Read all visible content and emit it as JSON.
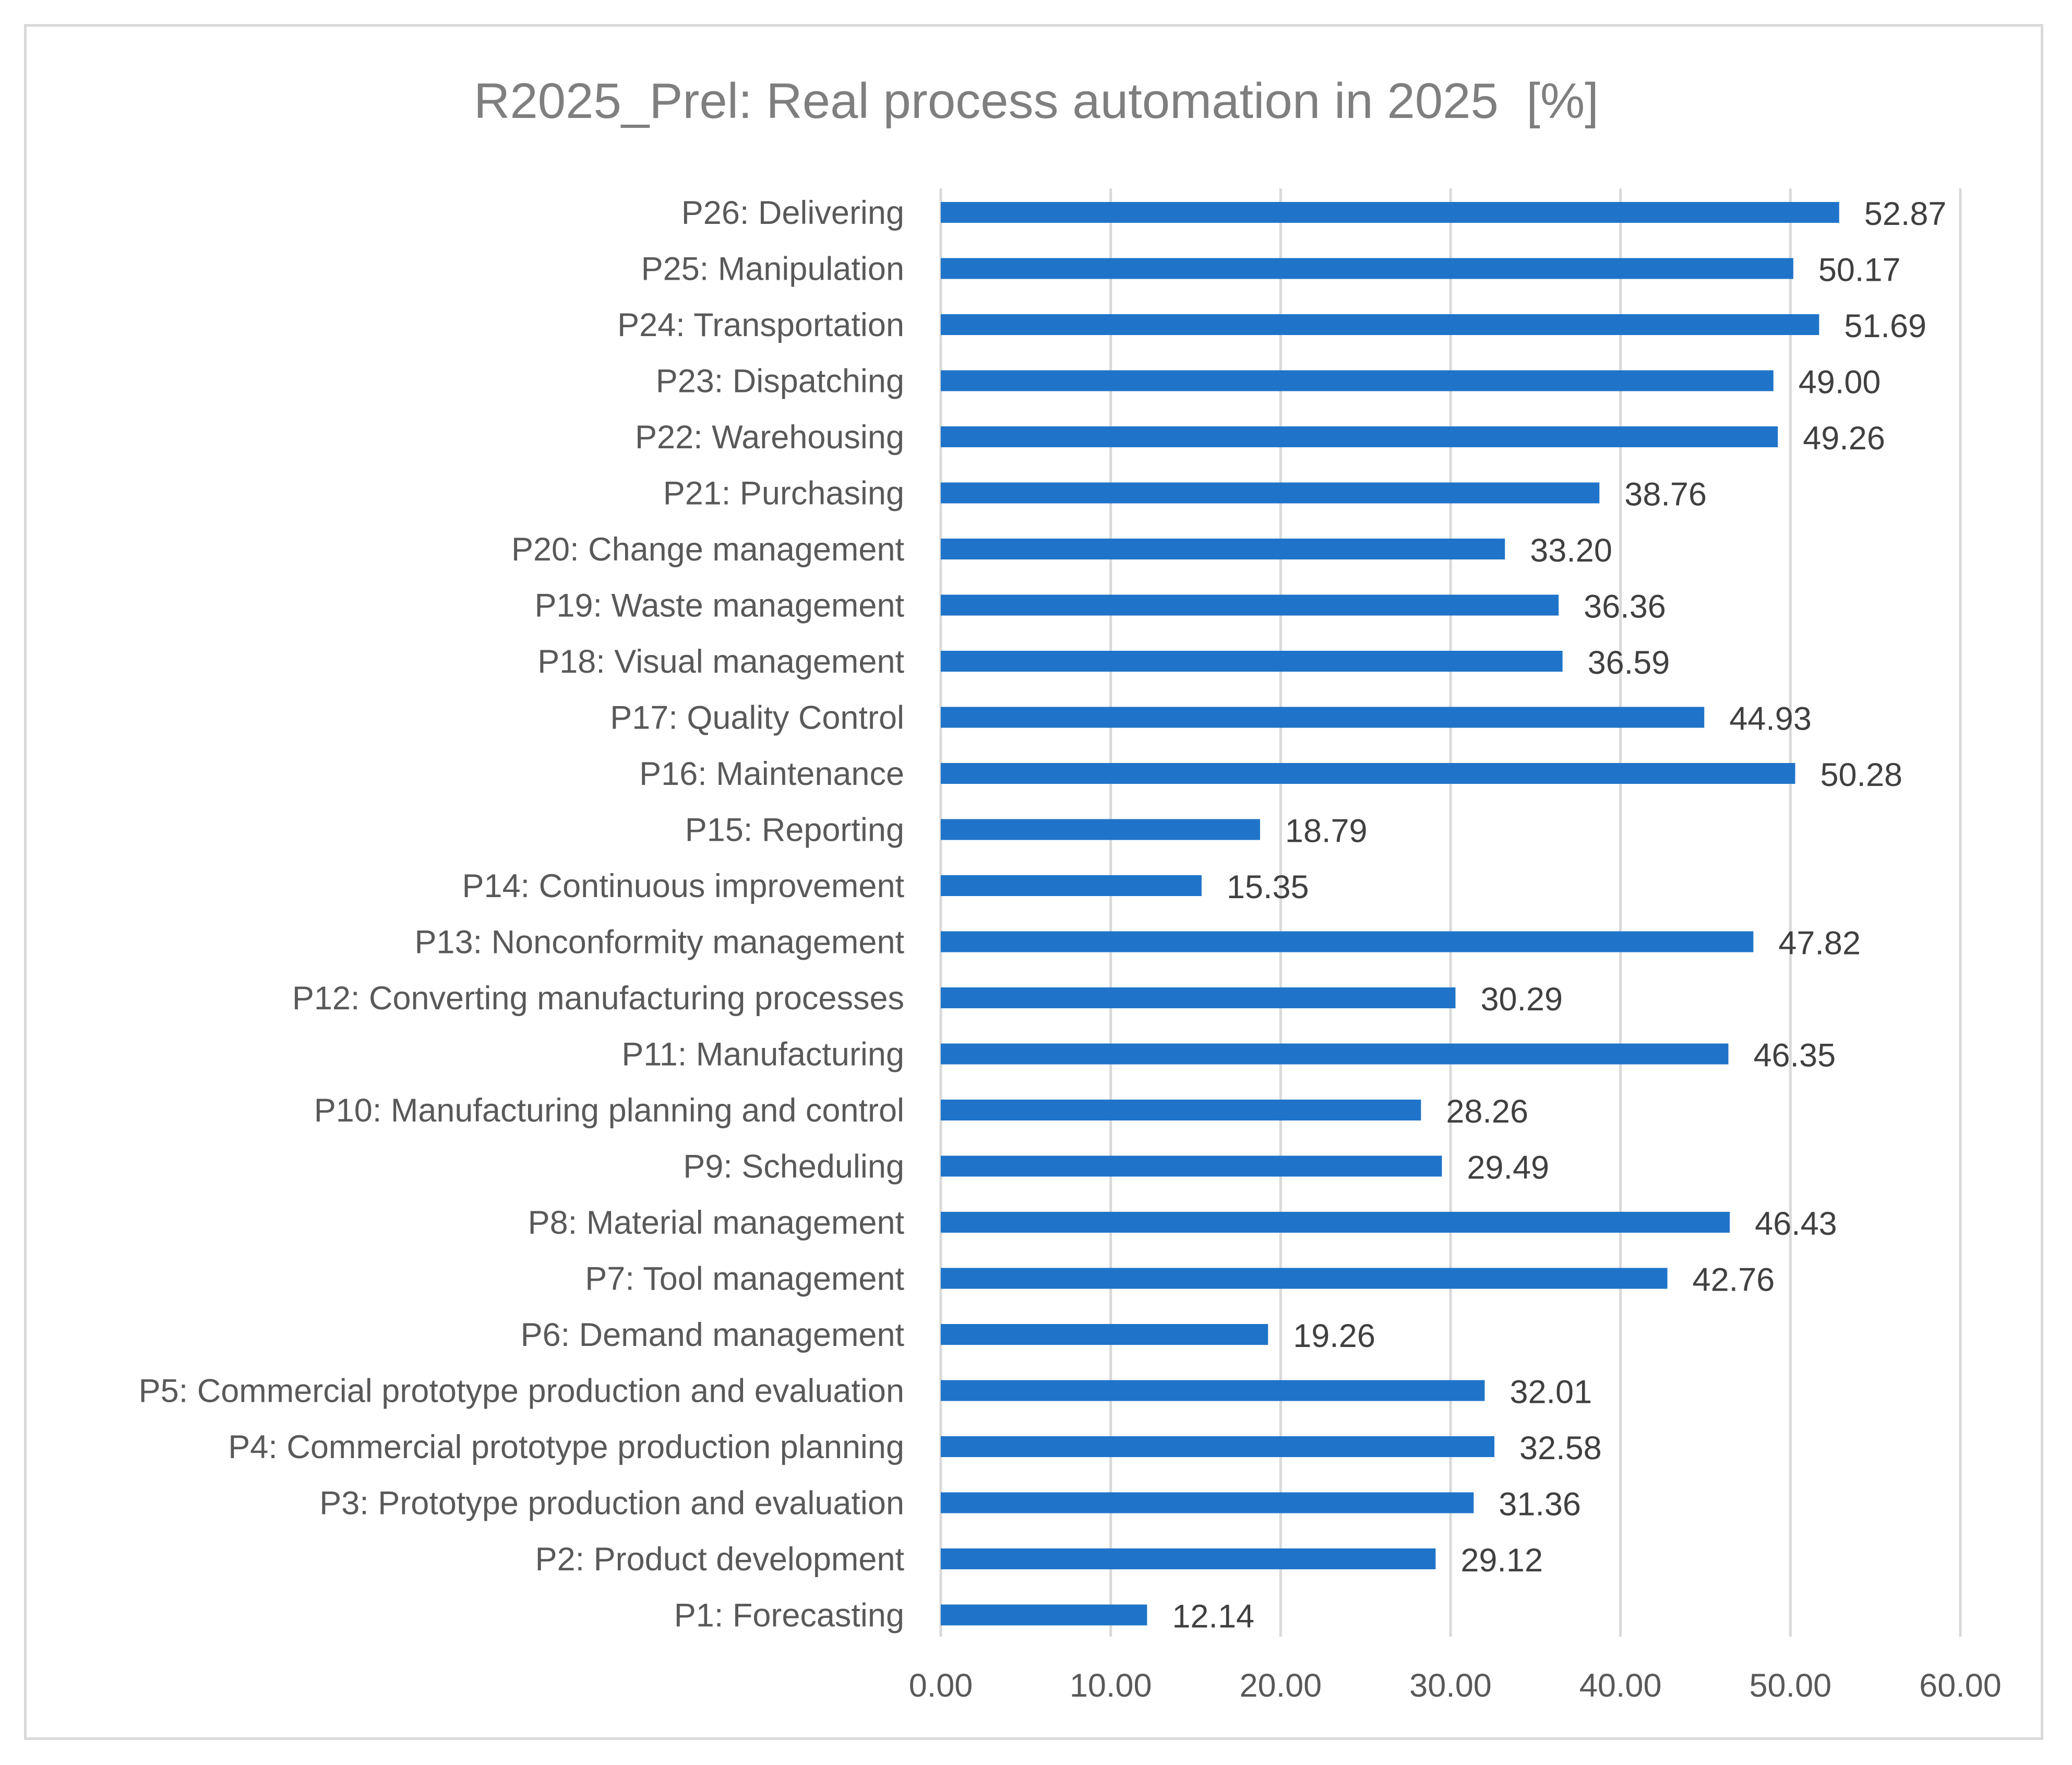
{
  "chart_data": {
    "type": "bar",
    "orientation": "horizontal",
    "title": "R2025_Prel: Real process automation in 2025  [%]",
    "xlabel": "",
    "ylabel": "",
    "xlim": [
      0,
      60
    ],
    "ticks": [
      "0.00",
      "10.00",
      "20.00",
      "30.00",
      "40.00",
      "50.00",
      "60.00"
    ],
    "tick_values": [
      0,
      10,
      20,
      30,
      40,
      50,
      60
    ],
    "grid": true,
    "legend": "none",
    "bar_color": "#1f74c9",
    "grid_color": "#d9d9d9",
    "categories": [
      "P26: Delivering",
      "P25: Manipulation",
      "P24: Transportation",
      "P23: Dispatching",
      "P22: Warehousing",
      "P21: Purchasing",
      "P20: Change management",
      "P19: Waste management",
      "P18: Visual management",
      "P17: Quality Control",
      "P16: Maintenance",
      "P15: Reporting",
      "P14: Continuous improvement ",
      "P13: Nonconformity management",
      "P12: Converting manufacturing processes",
      "P11: Manufacturing",
      "P10: Manufacturing planning and control",
      "P9: Scheduling",
      "P8: Material management",
      "P7: Tool management",
      "P6: Demand management",
      "P5: Commercial prototype production and evaluation",
      "P4: Commercial prototype production planning",
      "P3: Prototype production and evaluation",
      "P2: Product development",
      "P1: Forecasting"
    ],
    "values": [
      52.87,
      50.17,
      51.69,
      49.0,
      49.26,
      38.76,
      33.2,
      36.36,
      36.59,
      44.93,
      50.28,
      18.79,
      15.35,
      47.82,
      30.29,
      46.35,
      28.26,
      29.49,
      46.43,
      42.76,
      19.26,
      32.01,
      32.58,
      31.36,
      29.12,
      12.14
    ],
    "value_labels": [
      "52.87",
      "50.17",
      "51.69",
      "49.00",
      "49.26",
      "38.76",
      "33.20",
      "36.36",
      "36.59",
      "44.93",
      "50.28",
      "18.79",
      "15.35",
      "47.82",
      "30.29",
      "46.35",
      "28.26",
      "29.49",
      "46.43",
      "42.76",
      "19.26",
      "32.01",
      "32.58",
      "31.36",
      "29.12",
      "12.14"
    ]
  }
}
